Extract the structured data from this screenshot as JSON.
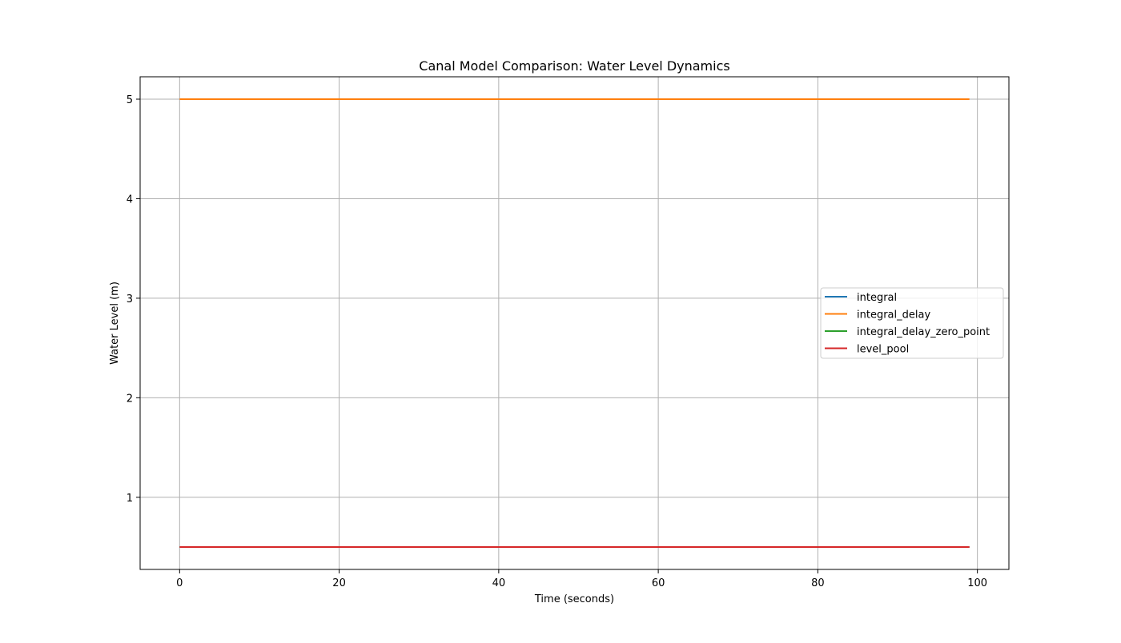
{
  "chart_data": {
    "type": "line",
    "title": "Canal Model Comparison: Water Level Dynamics",
    "xlabel": "Time (seconds)",
    "ylabel": "Water Level (m)",
    "xlim": [
      -4.95,
      103.95
    ],
    "ylim": [
      0.275,
      5.225
    ],
    "xticks": [
      0,
      20,
      40,
      60,
      80,
      100
    ],
    "yticks": [
      1,
      2,
      3,
      4,
      5
    ],
    "grid": true,
    "legend": {
      "placement": "center-right"
    },
    "x_range": [
      0,
      99
    ],
    "series": [
      {
        "name": "integral",
        "color": "#1f77b4",
        "x": [
          0,
          99
        ],
        "y": [
          0.5,
          0.5
        ]
      },
      {
        "name": "integral_delay",
        "color": "#ff7f0e",
        "x": [
          0,
          99
        ],
        "y": [
          5.0,
          5.0
        ]
      },
      {
        "name": "integral_delay_zero_point",
        "color": "#2ca02c",
        "x": [
          0,
          99
        ],
        "y": [
          0.5,
          0.5
        ]
      },
      {
        "name": "level_pool",
        "color": "#d62728",
        "x": [
          0,
          99
        ],
        "y": [
          0.5,
          0.5
        ]
      }
    ]
  }
}
